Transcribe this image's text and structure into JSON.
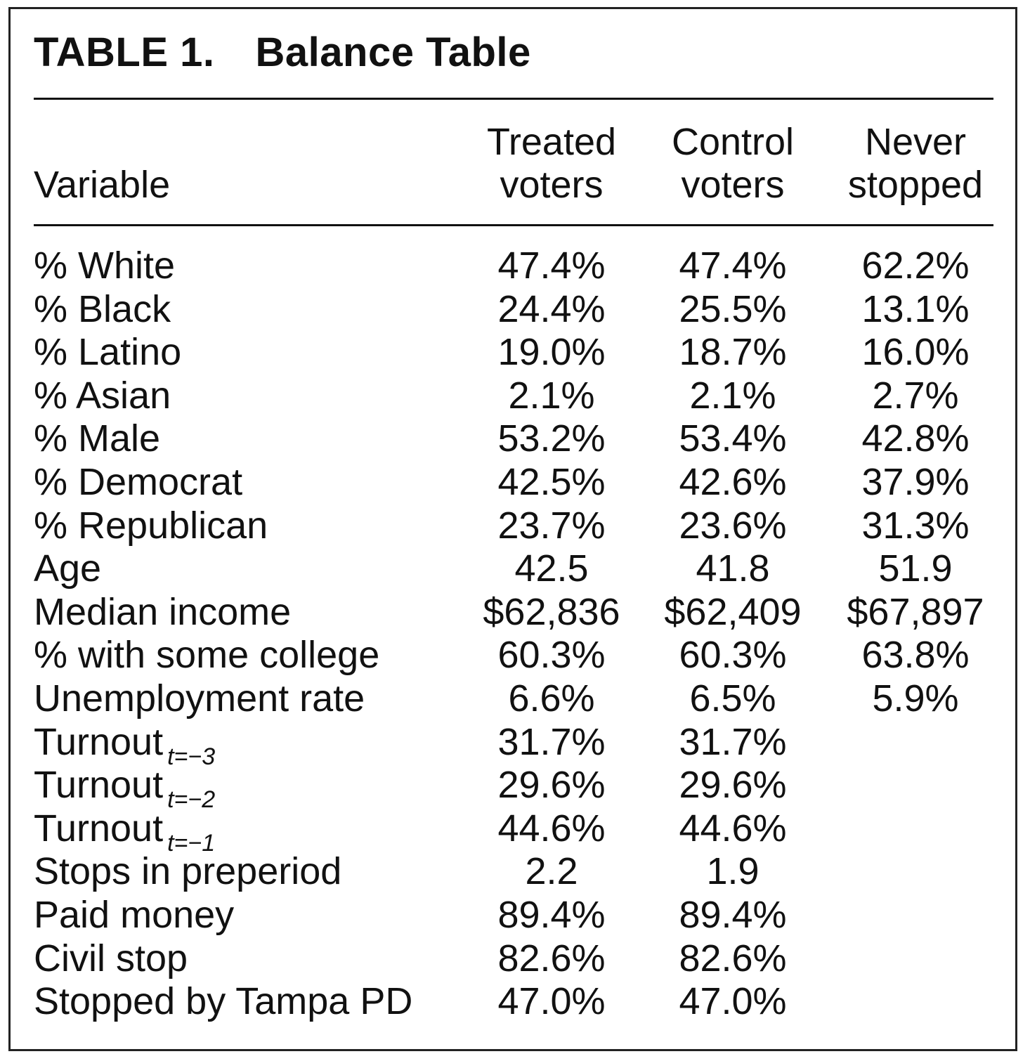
{
  "table": {
    "title_label": "TABLE 1.",
    "title_text": "Balance Table",
    "headers": {
      "variable": "Variable",
      "treated": [
        "Treated",
        "voters"
      ],
      "control": [
        "Control",
        "voters"
      ],
      "never": [
        "Never",
        "stopped"
      ]
    },
    "rows": [
      {
        "variable": "% White",
        "sub": "",
        "treated": "47.4%",
        "control": "47.4%",
        "never": "62.2%"
      },
      {
        "variable": "% Black",
        "sub": "",
        "treated": "24.4%",
        "control": "25.5%",
        "never": "13.1%"
      },
      {
        "variable": "% Latino",
        "sub": "",
        "treated": "19.0%",
        "control": "18.7%",
        "never": "16.0%"
      },
      {
        "variable": "% Asian",
        "sub": "",
        "treated": "2.1%",
        "control": "2.1%",
        "never": "2.7%"
      },
      {
        "variable": "% Male",
        "sub": "",
        "treated": "53.2%",
        "control": "53.4%",
        "never": "42.8%"
      },
      {
        "variable": "% Democrat",
        "sub": "",
        "treated": "42.5%",
        "control": "42.6%",
        "never": "37.9%"
      },
      {
        "variable": "% Republican",
        "sub": "",
        "treated": "23.7%",
        "control": "23.6%",
        "never": "31.3%"
      },
      {
        "variable": "Age",
        "sub": "",
        "treated": "42.5",
        "control": "41.8",
        "never": "51.9"
      },
      {
        "variable": "Median income",
        "sub": "",
        "treated": "$62,836",
        "control": "$62,409",
        "never": "$67,897"
      },
      {
        "variable": "% with some college",
        "sub": "",
        "treated": "60.3%",
        "control": "60.3%",
        "never": "63.8%"
      },
      {
        "variable": "Unemployment rate",
        "sub": "",
        "treated": "6.6%",
        "control": "6.5%",
        "never": "5.9%"
      },
      {
        "variable": "Turnout",
        "sub": "t=−3",
        "treated": "31.7%",
        "control": "31.7%",
        "never": ""
      },
      {
        "variable": "Turnout",
        "sub": "t=−2",
        "treated": "29.6%",
        "control": "29.6%",
        "never": ""
      },
      {
        "variable": "Turnout",
        "sub": "t=−1",
        "treated": "44.6%",
        "control": "44.6%",
        "never": ""
      },
      {
        "variable": "Stops in preperiod",
        "sub": "",
        "treated": "2.2",
        "control": "1.9",
        "never": ""
      },
      {
        "variable": "Paid money",
        "sub": "",
        "treated": "89.4%",
        "control": "89.4%",
        "never": ""
      },
      {
        "variable": "Civil stop",
        "sub": "",
        "treated": "82.6%",
        "control": "82.6%",
        "never": ""
      },
      {
        "variable": "Stopped by Tampa PD",
        "sub": "",
        "treated": "47.0%",
        "control": "47.0%",
        "never": ""
      }
    ]
  }
}
